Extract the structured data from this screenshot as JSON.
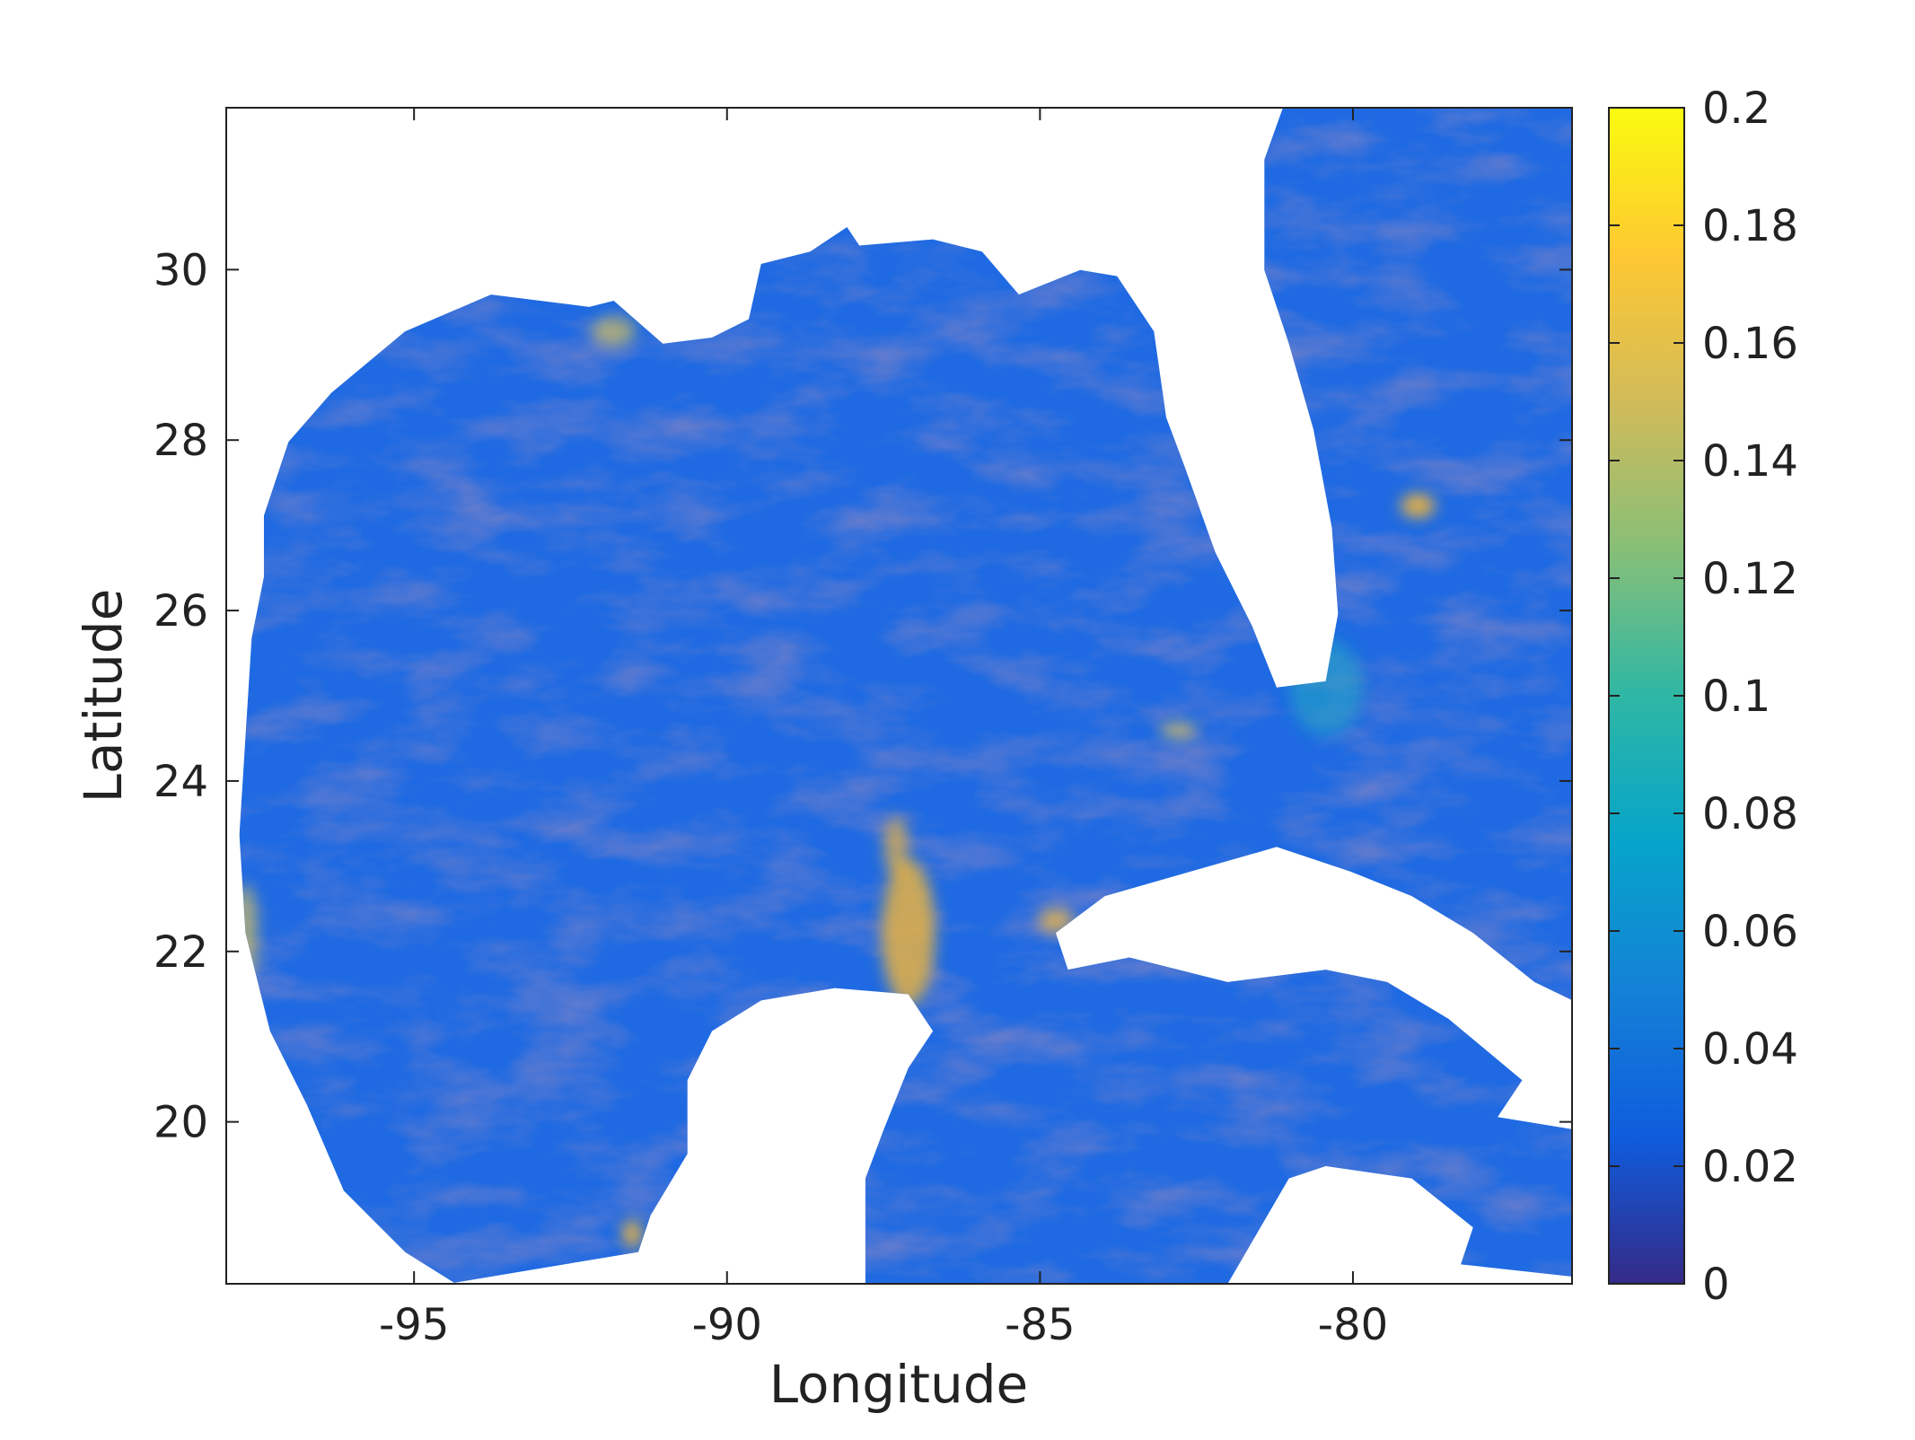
{
  "chart_data": {
    "type": "heatmap",
    "xlabel": "Longitude",
    "ylabel": "Latitude",
    "xlim": [
      -98,
      -76.5
    ],
    "xticks": [
      -95,
      -90,
      -85,
      -80
    ],
    "ylim": [
      18.1,
      31.9
    ],
    "yticks": [
      20,
      22,
      24,
      26,
      28,
      30
    ],
    "clim": [
      0,
      0.2
    ],
    "cticks": [
      0,
      0.02,
      0.04,
      0.06,
      0.08,
      0.1,
      0.12,
      0.14,
      0.16,
      0.18,
      0.2
    ],
    "colormap": [
      "#352a87",
      "#0f5cdd",
      "#1481d6",
      "#06a4ca",
      "#2eb7a4",
      "#87bf77",
      "#d1bb59",
      "#fec832",
      "#f9fb0e"
    ]
  }
}
